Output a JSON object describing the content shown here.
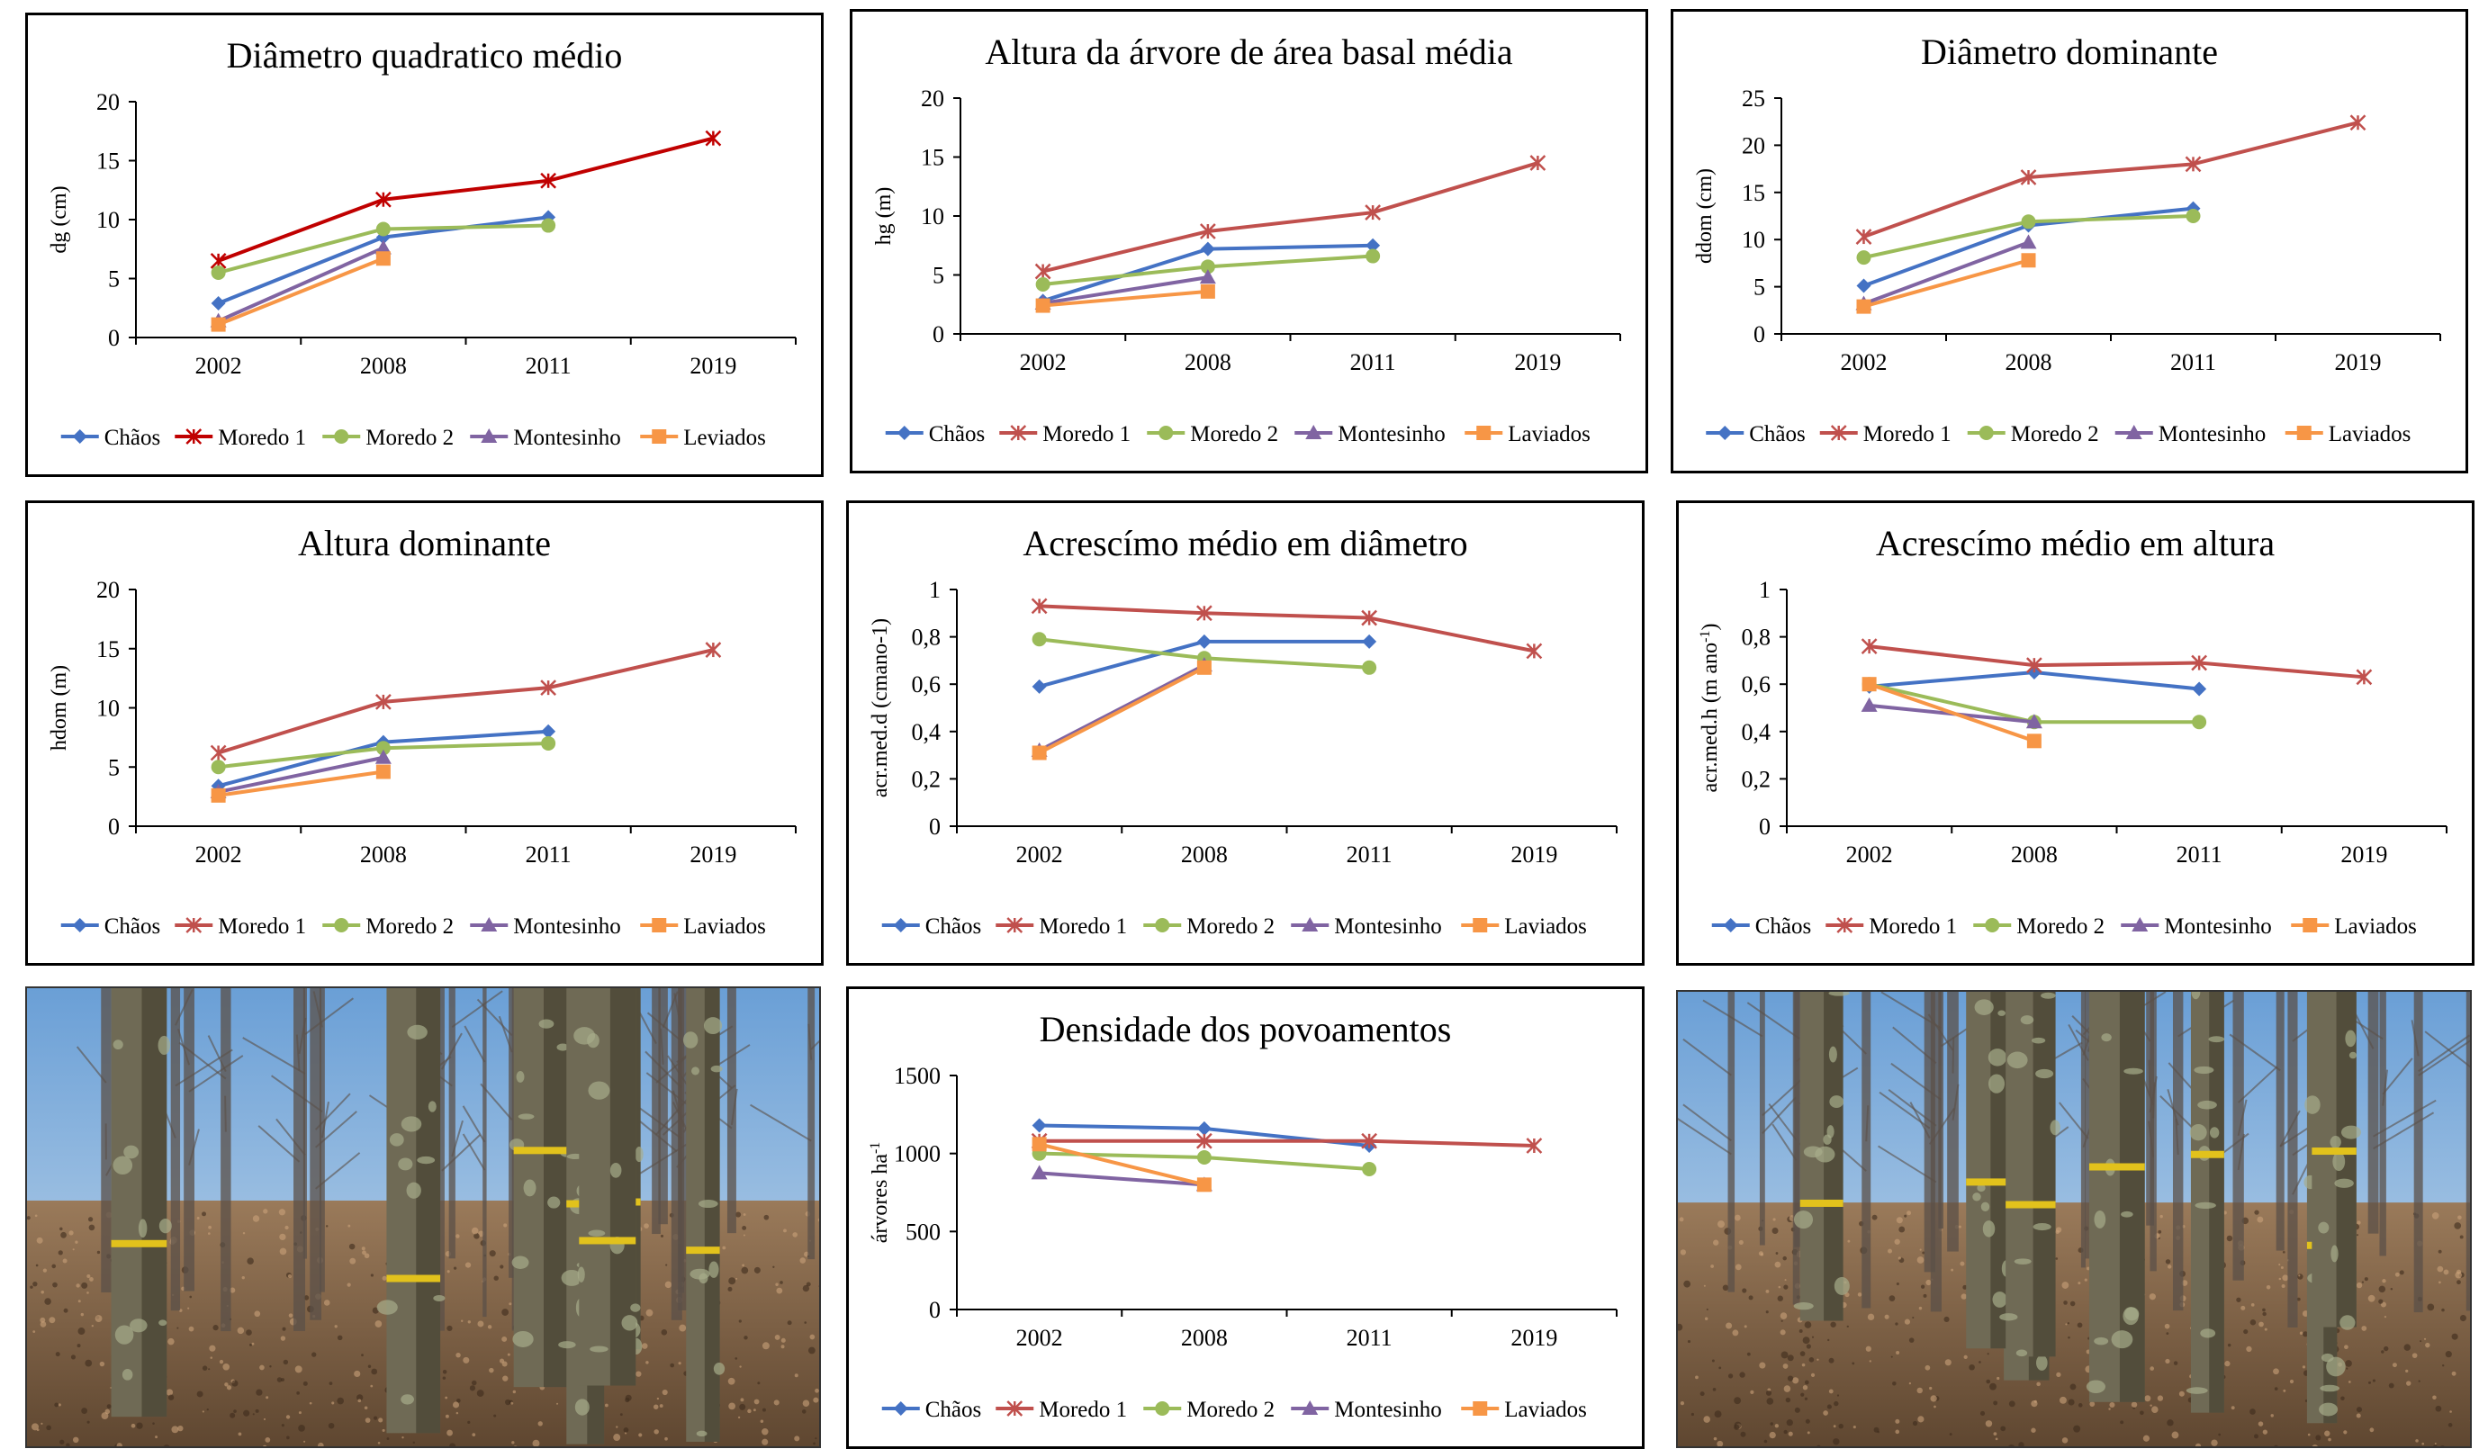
{
  "chart_data": [
    {
      "type": "line",
      "title": "Diâmetro quadratico médio",
      "ylabel": "dg (cm)",
      "categories": [
        "2002",
        "2008",
        "2011",
        "2019"
      ],
      "ylim": [
        0,
        20
      ],
      "yticks": [
        "0",
        "5",
        "10",
        "15",
        "20"
      ],
      "series": [
        {
          "name": "Chãos",
          "color": "#4472C4",
          "marker": "diamond",
          "values": [
            2.9,
            8.5,
            10.2,
            null
          ]
        },
        {
          "name": "Moredo 1",
          "color": "#C00000",
          "marker": "star",
          "values": [
            6.5,
            11.7,
            13.3,
            16.9
          ]
        },
        {
          "name": "Moredo 2",
          "color": "#9BBB59",
          "marker": "circle",
          "values": [
            5.5,
            9.2,
            9.5,
            null
          ]
        },
        {
          "name": "Montesinho",
          "color": "#8064A2",
          "marker": "triangle",
          "values": [
            1.4,
            7.6,
            null,
            null
          ]
        },
        {
          "name": "Leviados",
          "color": "#F79646",
          "marker": "square",
          "values": [
            1.1,
            6.7,
            null,
            null
          ]
        }
      ]
    },
    {
      "type": "line",
      "title": "Altura da árvore de área basal média",
      "ylabel": "hg (m)",
      "categories": [
        "2002",
        "2008",
        "2011",
        "2019"
      ],
      "ylim": [
        0,
        20
      ],
      "yticks": [
        "0",
        "5",
        "10",
        "15",
        "20"
      ],
      "series": [
        {
          "name": "Chãos",
          "color": "#4472C4",
          "marker": "diamond",
          "values": [
            2.8,
            7.2,
            7.5,
            null
          ]
        },
        {
          "name": "Moredo 1",
          "color": "#C0504D",
          "marker": "star",
          "values": [
            5.3,
            8.7,
            10.3,
            14.5
          ]
        },
        {
          "name": "Moredo 2",
          "color": "#9BBB59",
          "marker": "circle",
          "values": [
            4.2,
            5.7,
            6.6,
            null
          ]
        },
        {
          "name": "Montesinho",
          "color": "#8064A2",
          "marker": "triangle",
          "values": [
            2.6,
            4.8,
            null,
            null
          ]
        },
        {
          "name": "Laviados",
          "color": "#F79646",
          "marker": "square",
          "values": [
            2.4,
            3.6,
            null,
            null
          ]
        }
      ]
    },
    {
      "type": "line",
      "title": "Diâmetro dominante",
      "ylabel": "ddom (cm)",
      "categories": [
        "2002",
        "2008",
        "2011",
        "2019"
      ],
      "ylim": [
        0,
        25
      ],
      "yticks": [
        "0",
        "5",
        "10",
        "15",
        "20",
        "25"
      ],
      "series": [
        {
          "name": "Chãos",
          "color": "#4472C4",
          "marker": "diamond",
          "values": [
            5.1,
            11.5,
            13.3,
            null
          ]
        },
        {
          "name": "Moredo 1",
          "color": "#C0504D",
          "marker": "star",
          "values": [
            10.3,
            16.6,
            18.0,
            22.4
          ]
        },
        {
          "name": "Moredo 2",
          "color": "#9BBB59",
          "marker": "circle",
          "values": [
            8.1,
            11.9,
            12.5,
            null
          ]
        },
        {
          "name": "Montesinho",
          "color": "#8064A2",
          "marker": "triangle",
          "values": [
            3.2,
            9.7,
            null,
            null
          ]
        },
        {
          "name": "Laviados",
          "color": "#F79646",
          "marker": "square",
          "values": [
            2.9,
            7.8,
            null,
            null
          ]
        }
      ]
    },
    {
      "type": "line",
      "title": "Altura dominante",
      "ylabel": "hdom (m)",
      "categories": [
        "2002",
        "2008",
        "2011",
        "2019"
      ],
      "ylim": [
        0,
        20
      ],
      "yticks": [
        "0",
        "5",
        "10",
        "15",
        "20"
      ],
      "series": [
        {
          "name": "Chãos",
          "color": "#4472C4",
          "marker": "diamond",
          "values": [
            3.4,
            7.1,
            8.0,
            null
          ]
        },
        {
          "name": "Moredo 1",
          "color": "#C0504D",
          "marker": "star",
          "values": [
            6.2,
            10.5,
            11.7,
            14.9
          ]
        },
        {
          "name": "Moredo 2",
          "color": "#9BBB59",
          "marker": "circle",
          "values": [
            5.0,
            6.6,
            7.0,
            null
          ]
        },
        {
          "name": "Montesinho",
          "color": "#8064A2",
          "marker": "triangle",
          "values": [
            2.9,
            5.8,
            null,
            null
          ]
        },
        {
          "name": "Laviados",
          "color": "#F79646",
          "marker": "square",
          "values": [
            2.6,
            4.6,
            null,
            null
          ]
        }
      ]
    },
    {
      "type": "line",
      "title": "Acrescímo médio em diâmetro",
      "ylabel": "acr.med.d (cmano-1)",
      "categories": [
        "2002",
        "2008",
        "2011",
        "2019"
      ],
      "ylim": [
        0,
        1
      ],
      "yticks": [
        "0",
        "0,2",
        "0,4",
        "0,6",
        "0,8",
        "1"
      ],
      "series": [
        {
          "name": "Chãos",
          "color": "#4472C4",
          "marker": "diamond",
          "values": [
            0.59,
            0.78,
            0.78,
            null
          ]
        },
        {
          "name": "Moredo 1",
          "color": "#C0504D",
          "marker": "star",
          "values": [
            0.93,
            0.9,
            0.88,
            0.74
          ]
        },
        {
          "name": "Moredo 2",
          "color": "#9BBB59",
          "marker": "circle",
          "values": [
            0.79,
            0.71,
            0.67,
            null
          ]
        },
        {
          "name": "Montesinho",
          "color": "#8064A2",
          "marker": "triangle",
          "values": [
            0.32,
            0.68,
            null,
            null
          ]
        },
        {
          "name": "Laviados",
          "color": "#F79646",
          "marker": "square",
          "values": [
            0.31,
            0.67,
            null,
            null
          ]
        }
      ]
    },
    {
      "type": "line",
      "title": "Acrescímo médio em altura",
      "ylabel": "acr.med.h (m ano",
      "ylabel_sup": "-1",
      "ylabel_end": ")",
      "categories": [
        "2002",
        "2008",
        "2011",
        "2019"
      ],
      "ylim": [
        0,
        1
      ],
      "yticks": [
        "0",
        "0,2",
        "0,4",
        "0,6",
        "0,8",
        "1"
      ],
      "series": [
        {
          "name": "Chãos",
          "color": "#4472C4",
          "marker": "diamond",
          "values": [
            0.59,
            0.65,
            0.58,
            null
          ]
        },
        {
          "name": "Moredo 1",
          "color": "#C0504D",
          "marker": "star",
          "values": [
            0.76,
            0.68,
            0.69,
            0.63
          ]
        },
        {
          "name": "Moredo 2",
          "color": "#9BBB59",
          "marker": "circle",
          "values": [
            0.6,
            0.44,
            0.44,
            null
          ]
        },
        {
          "name": "Montesinho",
          "color": "#8064A2",
          "marker": "triangle",
          "values": [
            0.51,
            0.44,
            null,
            null
          ]
        },
        {
          "name": "Laviados",
          "color": "#F79646",
          "marker": "square",
          "values": [
            0.6,
            0.36,
            null,
            null
          ]
        }
      ]
    },
    {
      "type": "line",
      "title": "Densidade dos povoamentos",
      "ylabel": "árvores ha",
      "ylabel_sup": "-1",
      "categories": [
        "2002",
        "2008",
        "2011",
        "2019"
      ],
      "ylim": [
        0,
        1500
      ],
      "yticks": [
        "0",
        "500",
        "1000",
        "1500"
      ],
      "series": [
        {
          "name": "Chãos",
          "color": "#4472C4",
          "marker": "diamond",
          "values": [
            1180,
            1160,
            1050,
            null
          ]
        },
        {
          "name": "Moredo 1",
          "color": "#C0504D",
          "marker": "star",
          "values": [
            1080,
            1080,
            1080,
            1050
          ]
        },
        {
          "name": "Moredo 2",
          "color": "#9BBB59",
          "marker": "circle",
          "values": [
            1000,
            975,
            900,
            null
          ]
        },
        {
          "name": "Montesinho",
          "color": "#8064A2",
          "marker": "triangle",
          "values": [
            875,
            800,
            null,
            null
          ]
        },
        {
          "name": "Laviados",
          "color": "#F79646",
          "marker": "square",
          "values": [
            1060,
            800,
            null,
            null
          ]
        }
      ]
    }
  ],
  "photos": [
    {
      "caption": ""
    },
    {
      "caption": ""
    }
  ]
}
